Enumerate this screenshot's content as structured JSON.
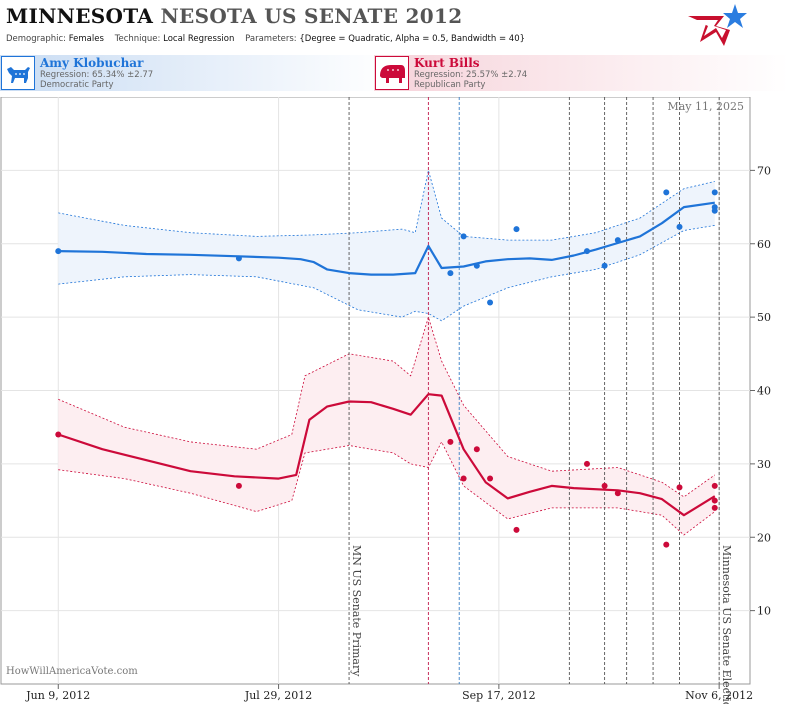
{
  "header": {
    "title_bold": "MINNESOTA",
    "title_rest": "NESOTA US SENATE 2012",
    "params": {
      "demographic_label": "Demographic:",
      "demographic_value": "Females",
      "technique_label": "Technique:",
      "technique_value": "Local Regression",
      "parameters_label": "Parameters:",
      "parameters_value": "{Degree = Quadratic, Alpha = 0.5, Bandwidth = 40}"
    }
  },
  "candidates": [
    {
      "name": "Amy Klobuchar",
      "regression": "Regression: 65.34% ±2.77",
      "party": "Democratic Party",
      "color": "#1f74d8"
    },
    {
      "name": "Kurt Bills",
      "regression": "Regression: 25.57% ±2.74",
      "party": "Republican Party",
      "color": "#cc0a3a"
    }
  ],
  "chart_data": {
    "type": "line",
    "date_label": "May 11, 2025",
    "watermark": "HowWillAmericaVote.com",
    "x_range": [
      "2012-05-27",
      "2012-11-13"
    ],
    "ylim": [
      0,
      80
    ],
    "y_ticks": [
      10,
      20,
      30,
      40,
      50,
      60,
      70
    ],
    "x_ticks": [
      {
        "date": "2012-06-09",
        "label": "Jun 9, 2012"
      },
      {
        "date": "2012-07-29",
        "label": "Jul 29, 2012"
      },
      {
        "date": "2012-09-17",
        "label": "Sep 17, 2012"
      },
      {
        "date": "2012-11-06",
        "label": "Nov 6, 2012"
      }
    ],
    "events": [
      {
        "date": "2012-08-14",
        "label": "MN US Senate Primary",
        "color": "#555555",
        "dash": "3,2"
      },
      {
        "date": "2012-09-01",
        "label": "",
        "color": "#c0184a",
        "dash": "3,2"
      },
      {
        "date": "2012-09-08",
        "label": "",
        "color": "#3a7fc4",
        "dash": "3,2"
      },
      {
        "date": "2012-10-03",
        "label": "",
        "color": "#555555",
        "dash": "3,2"
      },
      {
        "date": "2012-10-11",
        "label": "",
        "color": "#555555",
        "dash": "3,2"
      },
      {
        "date": "2012-10-16",
        "label": "",
        "color": "#555555",
        "dash": "3,2"
      },
      {
        "date": "2012-10-22",
        "label": "",
        "color": "#555555",
        "dash": "3,2"
      },
      {
        "date": "2012-10-28",
        "label": "",
        "color": "#555555",
        "dash": "3,2"
      },
      {
        "date": "2012-11-06",
        "label": "Minnesota US Senate Election",
        "color": "#555555",
        "dash": "3,2"
      }
    ],
    "series": [
      {
        "name": "Amy Klobuchar",
        "color": "#1f74d8",
        "band_fill": "#eef4fc",
        "fit": [
          [
            "2012-06-09",
            59.0
          ],
          [
            "2012-06-19",
            58.9
          ],
          [
            "2012-06-29",
            58.6
          ],
          [
            "2012-07-09",
            58.5
          ],
          [
            "2012-07-19",
            58.3
          ],
          [
            "2012-07-29",
            58.1
          ],
          [
            "2012-08-03",
            57.9
          ],
          [
            "2012-08-06",
            57.5
          ],
          [
            "2012-08-09",
            56.5
          ],
          [
            "2012-08-14",
            56.0
          ],
          [
            "2012-08-19",
            55.8
          ],
          [
            "2012-08-24",
            55.8
          ],
          [
            "2012-08-29",
            56.0
          ],
          [
            "2012-09-01",
            59.7
          ],
          [
            "2012-09-04",
            56.7
          ],
          [
            "2012-09-09",
            56.9
          ],
          [
            "2012-09-14",
            57.6
          ],
          [
            "2012-09-19",
            57.9
          ],
          [
            "2012-09-24",
            58.0
          ],
          [
            "2012-09-29",
            57.8
          ],
          [
            "2012-10-04",
            58.4
          ],
          [
            "2012-10-09",
            59.2
          ],
          [
            "2012-10-14",
            60.1
          ],
          [
            "2012-10-19",
            61.0
          ],
          [
            "2012-10-24",
            62.8
          ],
          [
            "2012-10-29",
            65.0
          ],
          [
            "2012-11-05",
            65.6
          ]
        ],
        "upper": [
          [
            "2012-06-09",
            64.2
          ],
          [
            "2012-06-24",
            62.5
          ],
          [
            "2012-07-09",
            61.5
          ],
          [
            "2012-07-24",
            61.0
          ],
          [
            "2012-08-06",
            61.2
          ],
          [
            "2012-08-16",
            61.5
          ],
          [
            "2012-08-26",
            62.0
          ],
          [
            "2012-08-29",
            61.5
          ],
          [
            "2012-09-01",
            70.0
          ],
          [
            "2012-09-04",
            63.5
          ],
          [
            "2012-09-09",
            61.0
          ],
          [
            "2012-09-19",
            60.5
          ],
          [
            "2012-09-29",
            60.5
          ],
          [
            "2012-10-09",
            61.5
          ],
          [
            "2012-10-19",
            63.5
          ],
          [
            "2012-10-29",
            67.5
          ],
          [
            "2012-11-05",
            68.5
          ]
        ],
        "lower": [
          [
            "2012-06-09",
            54.5
          ],
          [
            "2012-06-24",
            55.5
          ],
          [
            "2012-07-09",
            55.8
          ],
          [
            "2012-07-24",
            55.5
          ],
          [
            "2012-08-06",
            54.0
          ],
          [
            "2012-08-16",
            51.0
          ],
          [
            "2012-08-26",
            50.0
          ],
          [
            "2012-08-29",
            50.8
          ],
          [
            "2012-09-01",
            50.5
          ],
          [
            "2012-09-04",
            49.5
          ],
          [
            "2012-09-09",
            51.5
          ],
          [
            "2012-09-19",
            54.0
          ],
          [
            "2012-09-29",
            55.5
          ],
          [
            "2012-10-09",
            56.5
          ],
          [
            "2012-10-19",
            58.5
          ],
          [
            "2012-10-29",
            61.8
          ],
          [
            "2012-11-05",
            62.5
          ]
        ],
        "points": [
          [
            "2012-06-09",
            59.0
          ],
          [
            "2012-07-20",
            58.0
          ],
          [
            "2012-09-06",
            56.0
          ],
          [
            "2012-09-09",
            61.0
          ],
          [
            "2012-09-12",
            57.0
          ],
          [
            "2012-09-15",
            52.0
          ],
          [
            "2012-09-21",
            62.0
          ],
          [
            "2012-10-07",
            59.0
          ],
          [
            "2012-10-11",
            57.0
          ],
          [
            "2012-10-14",
            60.5
          ],
          [
            "2012-10-25",
            67.0
          ],
          [
            "2012-10-28",
            62.3
          ],
          [
            "2012-11-05",
            67.0
          ],
          [
            "2012-11-05",
            65.0
          ],
          [
            "2012-11-05",
            64.5
          ]
        ]
      },
      {
        "name": "Kurt Bills",
        "color": "#cc0a3a",
        "band_fill": "#fdeef1",
        "fit": [
          [
            "2012-06-09",
            34.0
          ],
          [
            "2012-06-19",
            32.0
          ],
          [
            "2012-06-29",
            30.5
          ],
          [
            "2012-07-09",
            29.0
          ],
          [
            "2012-07-19",
            28.3
          ],
          [
            "2012-07-29",
            28.0
          ],
          [
            "2012-08-02",
            28.5
          ],
          [
            "2012-08-05",
            36.0
          ],
          [
            "2012-08-09",
            37.8
          ],
          [
            "2012-08-14",
            38.5
          ],
          [
            "2012-08-19",
            38.4
          ],
          [
            "2012-08-24",
            37.5
          ],
          [
            "2012-08-28",
            36.7
          ],
          [
            "2012-09-01",
            39.5
          ],
          [
            "2012-09-04",
            39.3
          ],
          [
            "2012-09-09",
            32.0
          ],
          [
            "2012-09-14",
            27.5
          ],
          [
            "2012-09-19",
            25.3
          ],
          [
            "2012-09-24",
            26.2
          ],
          [
            "2012-09-29",
            27.0
          ],
          [
            "2012-10-04",
            26.7
          ],
          [
            "2012-10-14",
            26.4
          ],
          [
            "2012-10-19",
            26.0
          ],
          [
            "2012-10-24",
            25.2
          ],
          [
            "2012-10-29",
            23.0
          ],
          [
            "2012-11-05",
            25.6
          ]
        ],
        "upper": [
          [
            "2012-06-09",
            38.8
          ],
          [
            "2012-06-24",
            35.0
          ],
          [
            "2012-07-09",
            33.0
          ],
          [
            "2012-07-24",
            32.0
          ],
          [
            "2012-08-01",
            34.0
          ],
          [
            "2012-08-04",
            42.0
          ],
          [
            "2012-08-14",
            45.0
          ],
          [
            "2012-08-24",
            44.0
          ],
          [
            "2012-08-28",
            42.0
          ],
          [
            "2012-09-01",
            50.0
          ],
          [
            "2012-09-04",
            44.0
          ],
          [
            "2012-09-09",
            38.0
          ],
          [
            "2012-09-19",
            31.0
          ],
          [
            "2012-09-29",
            29.0
          ],
          [
            "2012-10-14",
            29.5
          ],
          [
            "2012-10-24",
            27.5
          ],
          [
            "2012-10-29",
            25.5
          ],
          [
            "2012-11-05",
            28.5
          ]
        ],
        "lower": [
          [
            "2012-06-09",
            29.2
          ],
          [
            "2012-06-24",
            28.0
          ],
          [
            "2012-07-09",
            26.0
          ],
          [
            "2012-07-24",
            23.5
          ],
          [
            "2012-08-01",
            25.0
          ],
          [
            "2012-08-04",
            31.5
          ],
          [
            "2012-08-14",
            32.5
          ],
          [
            "2012-08-24",
            31.5
          ],
          [
            "2012-08-28",
            30.0
          ],
          [
            "2012-09-01",
            29.5
          ],
          [
            "2012-09-04",
            33.0
          ],
          [
            "2012-09-09",
            27.0
          ],
          [
            "2012-09-19",
            22.5
          ],
          [
            "2012-09-29",
            24.0
          ],
          [
            "2012-10-14",
            24.0
          ],
          [
            "2012-10-24",
            23.0
          ],
          [
            "2012-10-29",
            20.3
          ],
          [
            "2012-11-05",
            23.5
          ]
        ],
        "points": [
          [
            "2012-06-09",
            34.0
          ],
          [
            "2012-07-20",
            27.0
          ],
          [
            "2012-09-06",
            33.0
          ],
          [
            "2012-09-09",
            28.0
          ],
          [
            "2012-09-12",
            32.0
          ],
          [
            "2012-09-15",
            28.0
          ],
          [
            "2012-09-21",
            21.0
          ],
          [
            "2012-10-07",
            30.0
          ],
          [
            "2012-10-11",
            27.0
          ],
          [
            "2012-10-14",
            26.0
          ],
          [
            "2012-10-25",
            19.0
          ],
          [
            "2012-10-28",
            26.8
          ],
          [
            "2012-11-05",
            27.0
          ],
          [
            "2012-11-05",
            25.0
          ],
          [
            "2012-11-05",
            24.0
          ]
        ]
      }
    ]
  }
}
